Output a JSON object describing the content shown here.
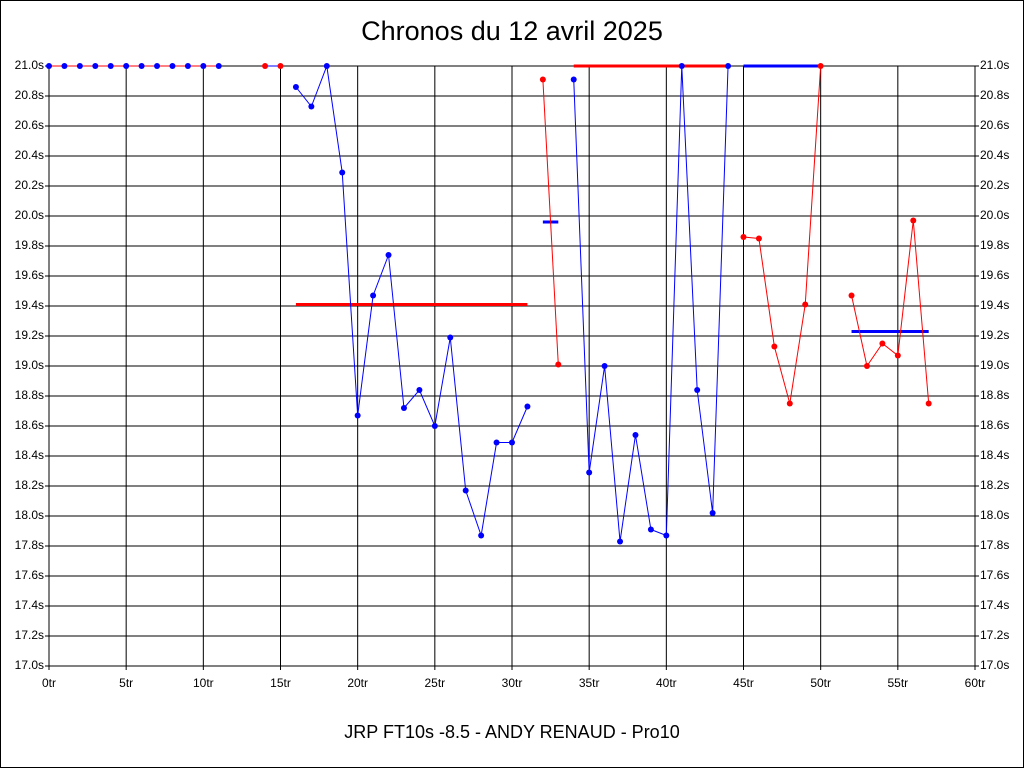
{
  "chart_data": {
    "type": "line",
    "title": "Chronos du 12 avril 2025",
    "xlabel": "JRP FT10s -8.5 - ANDY RENAUD - Pro10",
    "xlim": [
      0,
      60
    ],
    "xticks": [
      {
        "value": 0,
        "label": "0tr"
      },
      {
        "value": 5,
        "label": "5tr"
      },
      {
        "value": 10,
        "label": "10tr"
      },
      {
        "value": 15,
        "label": "15tr"
      },
      {
        "value": 20,
        "label": "20tr"
      },
      {
        "value": 25,
        "label": "25tr"
      },
      {
        "value": 30,
        "label": "30tr"
      },
      {
        "value": 35,
        "label": "35tr"
      },
      {
        "value": 40,
        "label": "40tr"
      },
      {
        "value": 45,
        "label": "45tr"
      },
      {
        "value": 50,
        "label": "50tr"
      },
      {
        "value": 55,
        "label": "55tr"
      },
      {
        "value": 60,
        "label": "60tr"
      }
    ],
    "ylim": [
      17.0,
      21.0
    ],
    "yticks": [
      {
        "value": 17.0,
        "label": "17.0s"
      },
      {
        "value": 17.2,
        "label": "17.2s"
      },
      {
        "value": 17.4,
        "label": "17.4s"
      },
      {
        "value": 17.6,
        "label": "17.6s"
      },
      {
        "value": 17.8,
        "label": "17.8s"
      },
      {
        "value": 18.0,
        "label": "18.0s"
      },
      {
        "value": 18.2,
        "label": "18.2s"
      },
      {
        "value": 18.4,
        "label": "18.4s"
      },
      {
        "value": 18.6,
        "label": "18.6s"
      },
      {
        "value": 18.8,
        "label": "18.8s"
      },
      {
        "value": 19.0,
        "label": "19.0s"
      },
      {
        "value": 19.2,
        "label": "19.2s"
      },
      {
        "value": 19.4,
        "label": "19.4s"
      },
      {
        "value": 19.6,
        "label": "19.6s"
      },
      {
        "value": 19.8,
        "label": "19.8s"
      },
      {
        "value": 20.0,
        "label": "20.0s"
      },
      {
        "value": 20.2,
        "label": "20.2s"
      },
      {
        "value": 20.4,
        "label": "20.4s"
      },
      {
        "value": 20.6,
        "label": "20.6s"
      },
      {
        "value": 20.8,
        "label": "20.8s"
      },
      {
        "value": 21.0,
        "label": "21.0s"
      }
    ],
    "grid": true,
    "series": [
      {
        "color": "#ff0000",
        "marker_color": "#0000ff",
        "x": [
          0,
          1,
          2,
          3,
          4,
          5,
          6,
          7,
          8,
          9,
          10,
          11
        ],
        "values": [
          21.0,
          21.0,
          21.0,
          21.0,
          21.0,
          21.0,
          21.0,
          21.0,
          21.0,
          21.0,
          21.0,
          21.0
        ]
      },
      {
        "color": "#0000ff",
        "marker_color": "#ff0000",
        "x": [
          14,
          15
        ],
        "values": [
          21.0,
          21.0
        ]
      },
      {
        "color": "#0000ff",
        "marker_color": "#0000ff",
        "x": [
          16,
          17,
          18,
          19,
          20,
          21,
          22,
          23,
          24,
          25,
          26,
          27,
          28,
          29,
          30,
          31
        ],
        "values": [
          20.86,
          20.73,
          21.0,
          20.29,
          18.67,
          19.47,
          19.74,
          18.72,
          18.84,
          18.6,
          19.19,
          18.17,
          17.87,
          18.49,
          18.49,
          18.73
        ]
      },
      {
        "color": "#ff0000",
        "marker_color": "#ff0000",
        "x": [
          32,
          33
        ],
        "values": [
          20.91,
          19.01
        ]
      },
      {
        "color": "#0000ff",
        "marker_color": "#0000ff",
        "x": [
          34,
          35,
          36,
          37,
          38,
          39,
          40,
          41,
          42,
          43,
          44
        ],
        "values": [
          20.91,
          18.29,
          19.0,
          17.83,
          18.54,
          17.91,
          17.87,
          21.0,
          18.84,
          18.02,
          21.0
        ]
      },
      {
        "color": "#ff0000",
        "marker_color": "#ff0000",
        "x": [
          45,
          46,
          47,
          48,
          49,
          50
        ],
        "values": [
          19.86,
          19.85,
          19.13,
          18.75,
          19.41,
          21.0
        ]
      },
      {
        "color": "#ff0000",
        "marker_color": "#ff0000",
        "x": [
          52,
          53,
          54,
          55,
          56,
          57
        ],
        "values": [
          19.47,
          19.0,
          19.15,
          19.07,
          19.97,
          18.75
        ]
      }
    ],
    "averages": [
      {
        "color": "#ff0000",
        "x": [
          16,
          31
        ],
        "values": [
          19.41,
          19.41
        ]
      },
      {
        "color": "#0000ff",
        "x": [
          32,
          33
        ],
        "values": [
          19.96,
          19.96
        ]
      },
      {
        "color": "#ff0000",
        "x": [
          34,
          44
        ],
        "values": [
          21.0,
          21.0
        ]
      },
      {
        "color": "#0000ff",
        "x": [
          45,
          50
        ],
        "values": [
          21.0,
          21.0
        ]
      },
      {
        "color": "#0000ff",
        "x": [
          52,
          57
        ],
        "values": [
          19.23,
          19.23
        ]
      }
    ]
  }
}
